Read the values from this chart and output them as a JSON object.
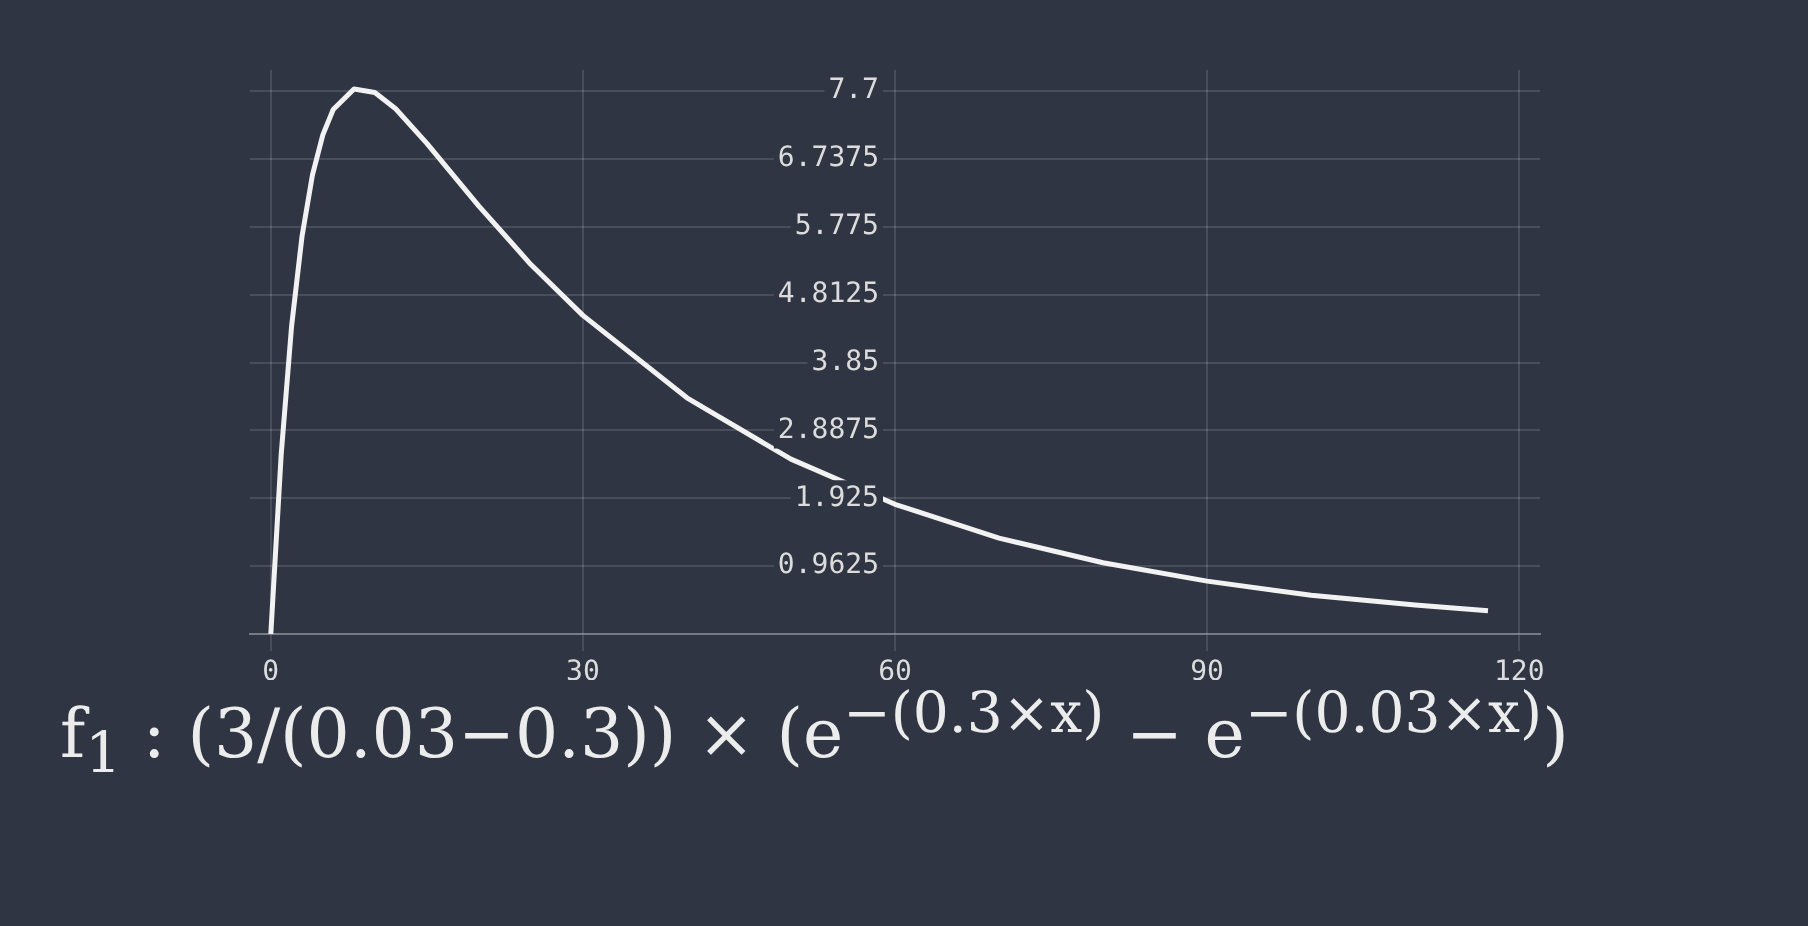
{
  "chart_data": {
    "type": "line",
    "x": [
      0,
      1,
      2,
      3,
      4,
      5,
      6,
      8,
      10,
      12,
      15,
      20,
      25,
      30,
      40,
      50,
      60,
      70,
      80,
      90,
      100,
      110,
      117
    ],
    "series": [
      {
        "color": "#f2f2f2",
        "values": [
          0,
          2.55,
          4.37,
          5.64,
          6.51,
          7.08,
          7.44,
          7.73,
          7.68,
          7.45,
          6.96,
          6.07,
          5.24,
          4.52,
          3.35,
          2.48,
          1.84,
          1.36,
          1.01,
          0.75,
          0.55,
          0.41,
          0.33
        ]
      }
    ],
    "xlim": [
      -2,
      122
    ],
    "xticks": [
      0,
      30,
      60,
      90,
      120
    ],
    "ylim": [
      0,
      8
    ],
    "yticks": [
      0.9625,
      1.925,
      2.8875,
      3.85,
      4.8125,
      5.775,
      6.7375,
      7.7
    ],
    "grid": true,
    "marker": "none",
    "line_style": "solid",
    "annotations": [
      "f$_{1}$ : (3/(0.03−0.3)) × (e$^{−(0.3×x)}$ − e$^{−(0.03×x)}$)"
    ]
  }
}
